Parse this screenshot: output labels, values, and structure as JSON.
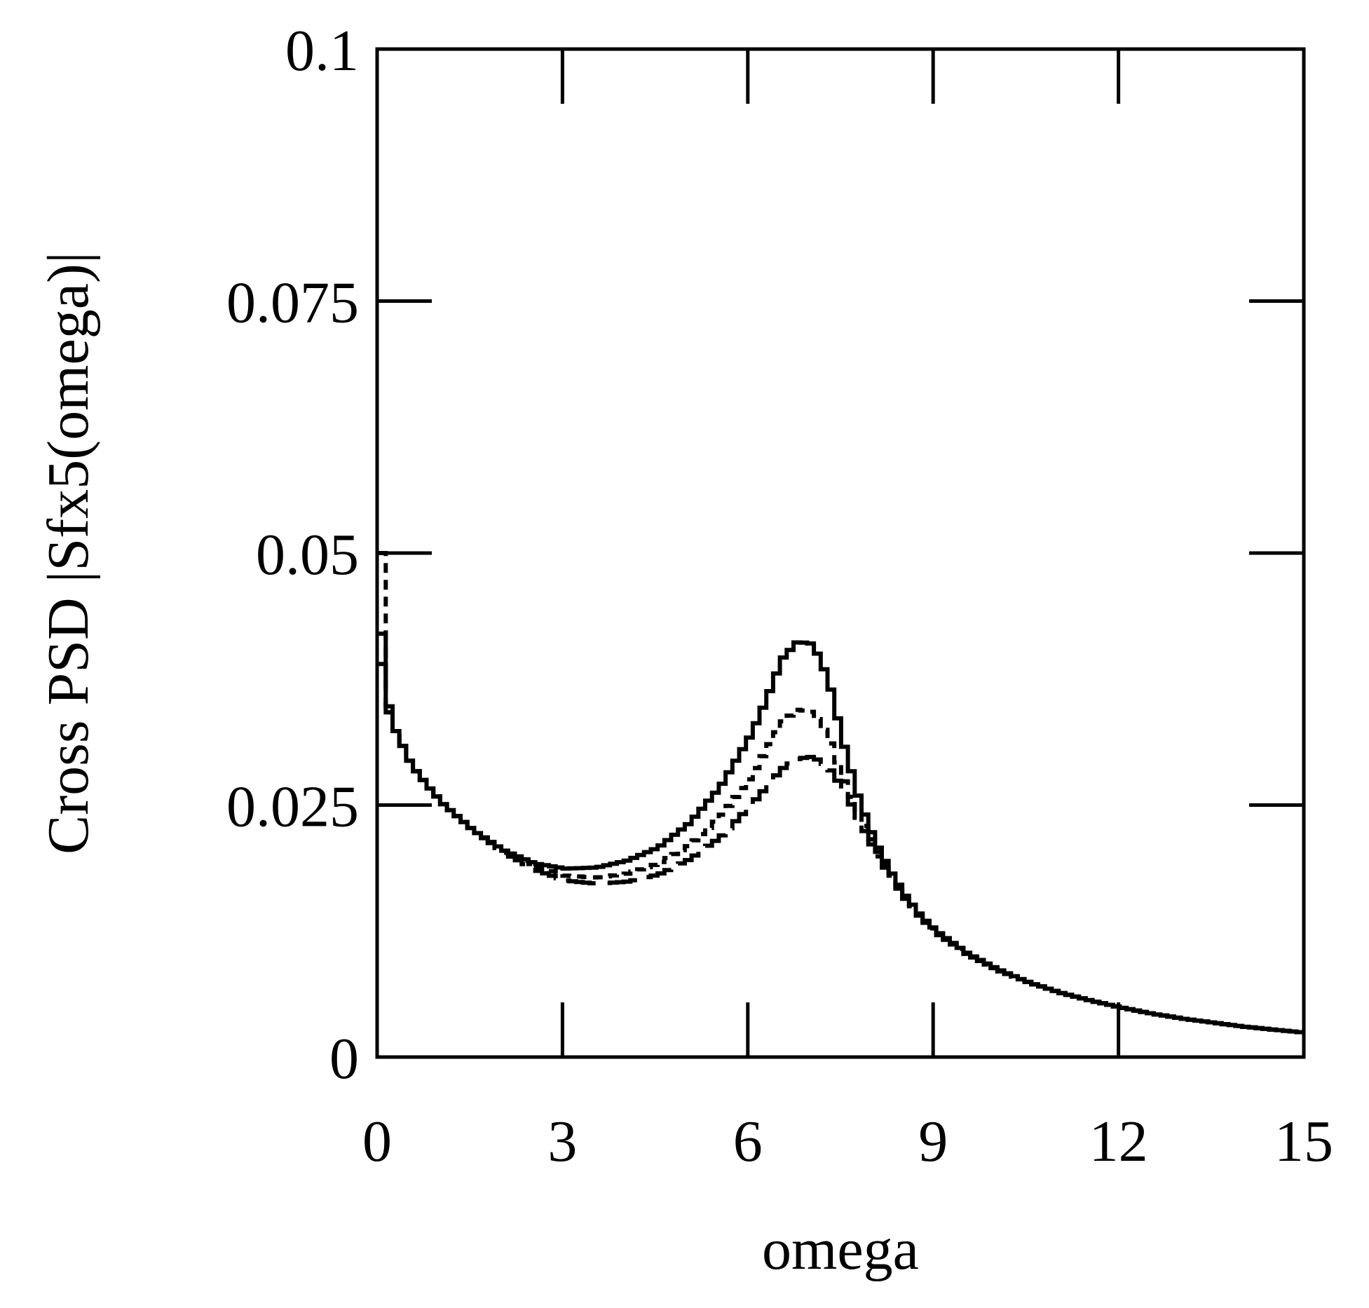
{
  "chart_data": {
    "type": "line",
    "title": "",
    "xlabel": "omega",
    "ylabel": "Cross PSD |Sfx5(omega)|",
    "xlim": [
      0,
      15
    ],
    "ylim": [
      0,
      0.1
    ],
    "xticks": [
      0,
      3,
      6,
      9,
      12,
      15
    ],
    "yticks": [
      0,
      0.025,
      0.05,
      0.075,
      0.1
    ],
    "xtick_labels": [
      "0",
      "3",
      "6",
      "9",
      "12",
      "15"
    ],
    "ytick_labels": [
      "0",
      "0.025",
      "0.05",
      "0.075",
      "0.1"
    ],
    "grid": false,
    "legend": null,
    "series": [
      {
        "name": "solid",
        "style": "solid",
        "x": [
          0.03,
          0.1,
          0.2,
          0.35,
          0.5,
          0.75,
          1.0,
          1.5,
          2.0,
          2.5,
          3.0,
          3.5,
          4.0,
          4.5,
          5.0,
          5.5,
          6.0,
          6.25,
          6.5,
          6.75,
          7.0,
          7.25,
          7.5,
          7.75,
          8.0,
          8.25,
          8.5,
          8.75,
          9.0,
          9.5,
          10.0,
          10.5,
          11.0,
          11.5,
          12.0,
          12.5,
          13.0,
          13.5,
          14.0,
          14.5,
          15.0
        ],
        "y": [
          0.042,
          0.036,
          0.033,
          0.031,
          0.029,
          0.027,
          0.0252,
          0.0225,
          0.0205,
          0.0192,
          0.0187,
          0.0188,
          0.0195,
          0.0208,
          0.0232,
          0.0268,
          0.032,
          0.0355,
          0.0395,
          0.0412,
          0.041,
          0.0375,
          0.031,
          0.0255,
          0.0215,
          0.0185,
          0.016,
          0.014,
          0.0125,
          0.0103,
          0.0087,
          0.0074,
          0.0064,
          0.0056,
          0.0049,
          0.0043,
          0.0038,
          0.0034,
          0.003,
          0.0027,
          0.0024
        ]
      },
      {
        "name": "short-dashed",
        "style": "short-dash",
        "x": [
          0.03,
          0.1,
          0.2,
          0.35,
          0.5,
          0.75,
          1.0,
          1.5,
          2.0,
          2.5,
          3.0,
          3.5,
          4.0,
          4.5,
          5.0,
          5.5,
          6.0,
          6.25,
          6.5,
          6.75,
          7.0,
          7.25,
          7.5,
          7.75,
          8.0,
          8.25,
          8.5,
          8.75,
          9.0,
          9.5,
          10.0,
          10.5,
          11.0,
          11.5,
          12.0,
          12.5,
          13.0,
          13.5,
          14.0,
          14.5,
          15.0
        ],
        "y": [
          0.05,
          0.035,
          0.033,
          0.031,
          0.029,
          0.027,
          0.0252,
          0.0225,
          0.0205,
          0.019,
          0.018,
          0.0178,
          0.0182,
          0.0192,
          0.021,
          0.0238,
          0.0278,
          0.0305,
          0.0332,
          0.0345,
          0.0342,
          0.0318,
          0.0275,
          0.024,
          0.021,
          0.0183,
          0.0158,
          0.0139,
          0.0124,
          0.0102,
          0.0086,
          0.0074,
          0.0064,
          0.0056,
          0.0049,
          0.0043,
          0.0038,
          0.0034,
          0.003,
          0.0027,
          0.0024
        ]
      },
      {
        "name": "long-dashed",
        "style": "long-dash",
        "x": [
          0.03,
          0.1,
          0.2,
          0.35,
          0.5,
          0.75,
          1.0,
          1.5,
          2.0,
          2.5,
          3.0,
          3.5,
          4.0,
          4.5,
          5.0,
          5.5,
          6.0,
          6.25,
          6.5,
          6.75,
          7.0,
          7.25,
          7.5,
          7.75,
          8.0,
          8.25,
          8.5,
          8.75,
          9.0,
          9.5,
          10.0,
          10.5,
          11.0,
          11.5,
          12.0,
          12.5,
          13.0,
          13.5,
          14.0,
          14.5,
          15.0
        ],
        "y": [
          0.039,
          0.035,
          0.033,
          0.031,
          0.029,
          0.027,
          0.0252,
          0.0225,
          0.0203,
          0.0186,
          0.0175,
          0.0172,
          0.0174,
          0.0181,
          0.0196,
          0.0218,
          0.025,
          0.0268,
          0.0286,
          0.0296,
          0.0298,
          0.0288,
          0.0265,
          0.0235,
          0.0205,
          0.018,
          0.0157,
          0.0138,
          0.0123,
          0.0102,
          0.0086,
          0.0074,
          0.0064,
          0.0056,
          0.0049,
          0.0043,
          0.0038,
          0.0034,
          0.003,
          0.0027,
          0.0024
        ]
      }
    ]
  }
}
